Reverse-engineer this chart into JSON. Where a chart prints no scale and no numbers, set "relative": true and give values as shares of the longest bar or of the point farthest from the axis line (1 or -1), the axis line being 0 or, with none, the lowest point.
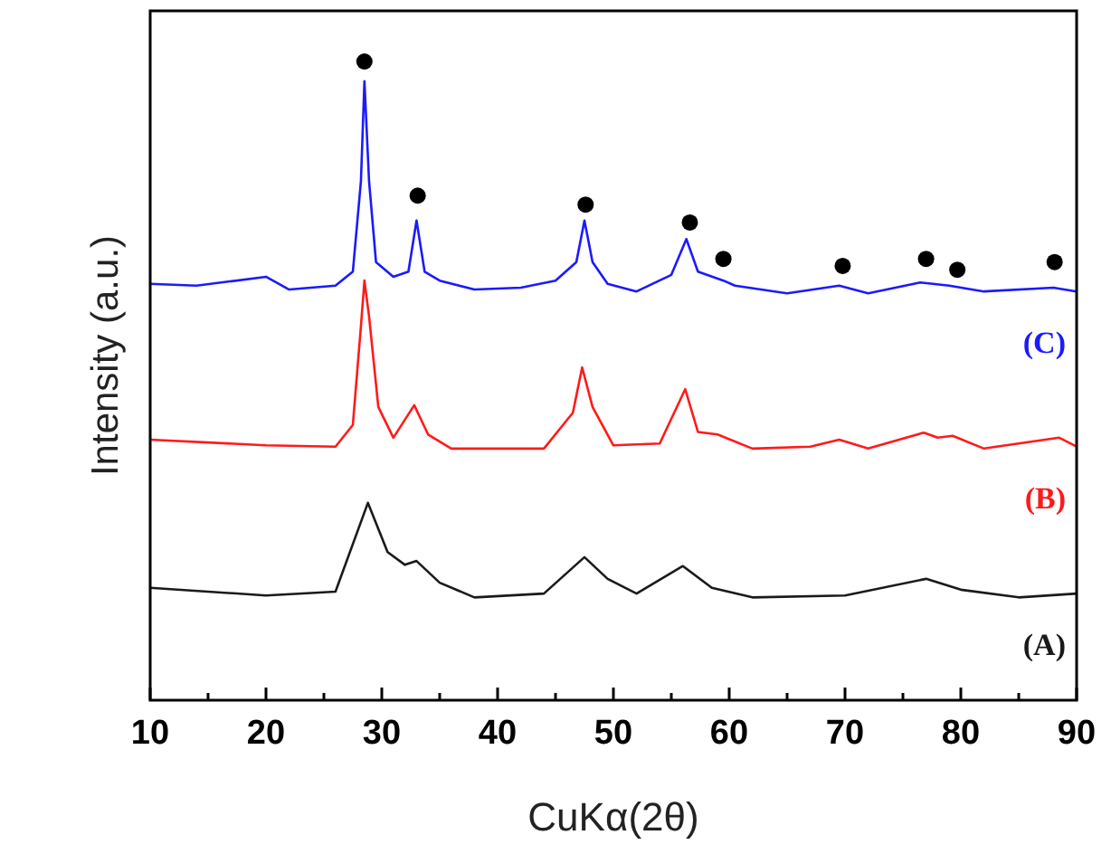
{
  "chart_data": {
    "type": "line",
    "relative": true,
    "xlabel": "CuKα(2θ)",
    "ylabel": "Intensity (a.u.)",
    "xlim": [
      10,
      90
    ],
    "xticks": [
      10,
      {
        "value": 15,
        "label": null
      },
      20,
      {
        "value": 25,
        "label": null
      },
      30,
      {
        "value": 35,
        "label": null
      },
      40,
      {
        "value": 45,
        "label": null
      },
      50,
      {
        "value": 55,
        "label": null
      },
      60,
      {
        "value": 65,
        "label": null
      },
      70,
      {
        "value": 75,
        "label": null
      },
      80,
      {
        "value": 85,
        "label": null
      },
      90
    ],
    "grid": false,
    "marker": "none",
    "line_style": "solid",
    "series": [
      {
        "name": "(C)",
        "color": "#1a1aff",
        "x": [
          10,
          14,
          20,
          22,
          26,
          27.5,
          28.2,
          28.5,
          28.9,
          29.5,
          31,
          32.3,
          33,
          33.7,
          35,
          38,
          42,
          45,
          46.8,
          47.5,
          48.2,
          49.5,
          52,
          55,
          56.3,
          57.3,
          59.5,
          60.5,
          65,
          69.5,
          72,
          76.5,
          79,
          82,
          88,
          90
        ],
        "values": [
          0.652,
          0.649,
          0.663,
          0.643,
          0.649,
          0.671,
          0.813,
          0.969,
          0.813,
          0.686,
          0.663,
          0.671,
          0.751,
          0.671,
          0.657,
          0.643,
          0.646,
          0.657,
          0.686,
          0.751,
          0.686,
          0.652,
          0.64,
          0.666,
          0.722,
          0.671,
          0.657,
          0.649,
          0.637,
          0.649,
          0.637,
          0.654,
          0.649,
          0.64,
          0.646,
          0.64
        ]
      },
      {
        "name": "(B)",
        "color": "#ff1a1a",
        "x": [
          10,
          20,
          26,
          27.5,
          28.2,
          28.5,
          28.9,
          29.7,
          31,
          32.8,
          34,
          36,
          44,
          46.5,
          47.3,
          48.2,
          50,
          54,
          56.2,
          57.3,
          59,
          62,
          67,
          69.5,
          72,
          76.8,
          78,
          79.3,
          82,
          88.5,
          90
        ],
        "values": [
          0.408,
          0.399,
          0.397,
          0.431,
          0.586,
          0.657,
          0.601,
          0.459,
          0.411,
          0.462,
          0.416,
          0.394,
          0.394,
          0.45,
          0.521,
          0.459,
          0.399,
          0.402,
          0.487,
          0.42,
          0.416,
          0.394,
          0.397,
          0.408,
          0.394,
          0.419,
          0.411,
          0.414,
          0.394,
          0.411,
          0.397
        ]
      },
      {
        "name": "(A)",
        "color": "#1a1a1a",
        "x": [
          10,
          20,
          26,
          28.8,
          30.5,
          32,
          33,
          35,
          38,
          44,
          47.5,
          49.5,
          52,
          56,
          58.5,
          62,
          70,
          77,
          80,
          85,
          90
        ],
        "values": [
          0.176,
          0.164,
          0.17,
          0.309,
          0.232,
          0.212,
          0.218,
          0.184,
          0.161,
          0.167,
          0.224,
          0.19,
          0.167,
          0.21,
          0.176,
          0.161,
          0.164,
          0.19,
          0.173,
          0.161,
          0.167
        ]
      },
      {
        "type": "scatter",
        "marker": "circle",
        "color": "#000000",
        "x": [
          28.5,
          33.1,
          47.6,
          56.6,
          59.5,
          69.8,
          77,
          79.7,
          88.1
        ],
        "values": [
          1.0,
          0.79,
          0.776,
          0.748,
          0.691,
          0.68,
          0.691,
          0.674,
          0.686
        ]
      }
    ]
  }
}
